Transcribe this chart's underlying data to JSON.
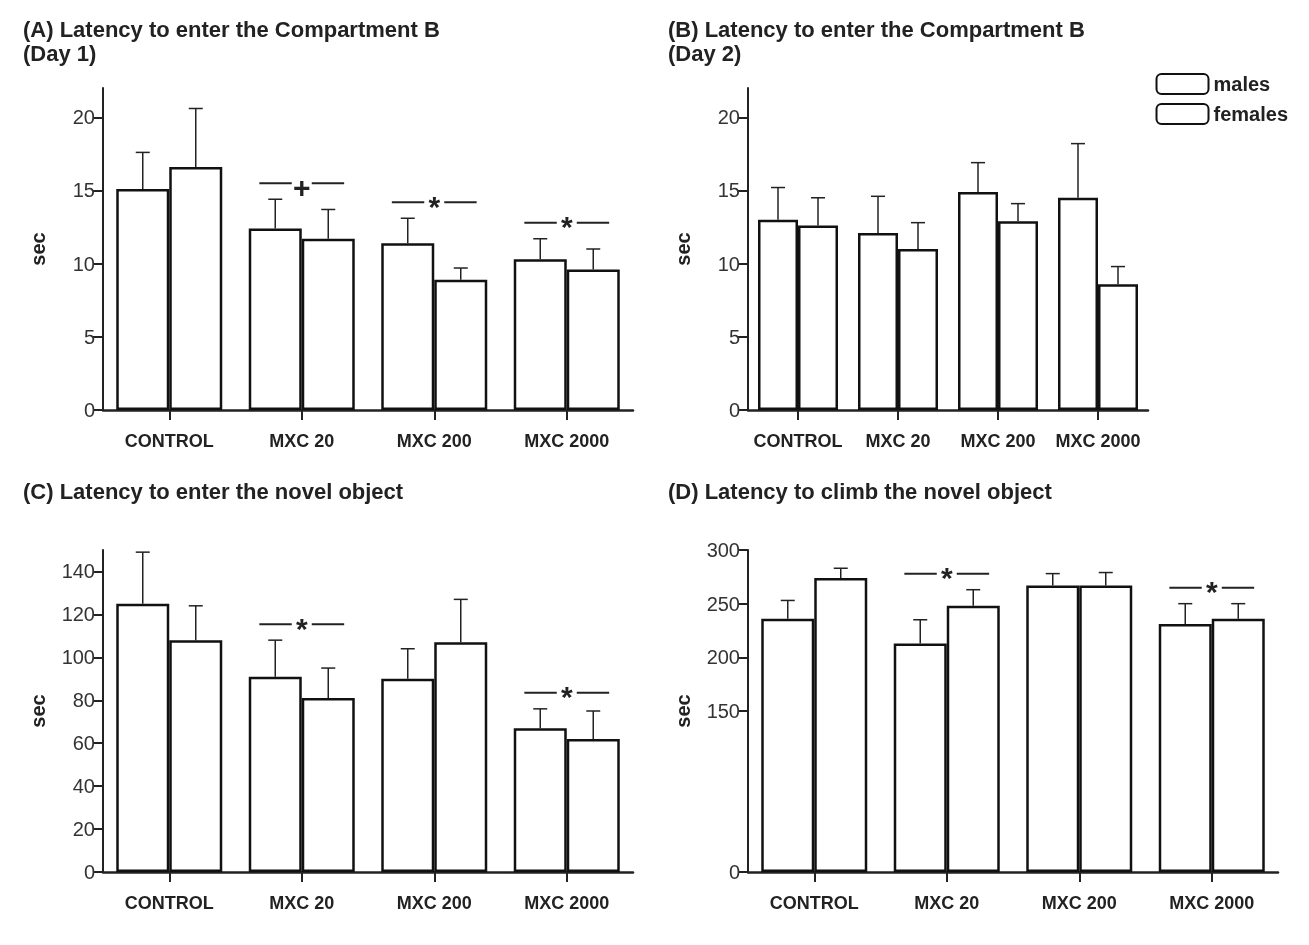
{
  "chart_data": [
    {
      "type": "bar",
      "title": "(A) Latency to enter the Compartment B\n(Day 1)",
      "ylabel": "sec",
      "categories": [
        "CONTROL",
        "MXC 20",
        "MXC 200",
        "MXC 2000"
      ],
      "ylim": [
        0,
        22
      ],
      "yticks": [
        0,
        5,
        10,
        15,
        20
      ],
      "grid": false,
      "series": [
        {
          "color": "#ffffff",
          "values": [
            15.1,
            12.4,
            11.4,
            10.3
          ],
          "errors": [
            [
              15.1,
              17.6
            ],
            [
              12.4,
              14.4
            ],
            [
              11.4,
              13.1
            ],
            [
              10.3,
              11.7
            ]
          ]
        },
        {
          "color": "#ffffff",
          "values": [
            16.6,
            11.7,
            8.9,
            9.6
          ],
          "errors": [
            [
              16.6,
              20.6
            ],
            [
              11.7,
              13.7
            ],
            [
              8.9,
              9.7
            ],
            [
              9.6,
              11.0
            ]
          ]
        }
      ],
      "annotations": [
        "+",
        "*",
        "*"
      ]
    },
    {
      "type": "bar",
      "title": "(B) Latency to enter the Compartment B\n(Day 2)",
      "ylabel": "sec",
      "categories": [
        "CONTROL",
        "MXC 20",
        "MXC 200",
        "MXC 2000"
      ],
      "ylim": [
        0,
        22
      ],
      "yticks": [
        0,
        5,
        10,
        15,
        20
      ],
      "legend": "top right",
      "grid": false,
      "series": [
        {
          "name": "males",
          "color": "#ffffff",
          "values": [
            13.0,
            12.1,
            14.9,
            14.5
          ],
          "errors": [
            [
              13.0,
              15.2
            ],
            [
              12.1,
              14.6
            ],
            [
              14.9,
              16.9
            ],
            [
              14.5,
              18.2
            ]
          ]
        },
        {
          "name": "females",
          "color": "#ffffff",
          "values": [
            12.6,
            11.0,
            12.9,
            8.6
          ],
          "errors": [
            [
              12.6,
              14.5
            ],
            [
              11.0,
              12.8
            ],
            [
              12.9,
              14.1
            ],
            [
              8.6,
              9.8
            ]
          ]
        }
      ]
    },
    {
      "type": "bar",
      "title": "(C) Latency to enter the novel object",
      "ylabel": "sec",
      "categories": [
        "CONTROL",
        "MXC 20",
        "MXC 200",
        "MXC 2000"
      ],
      "ylim": [
        0,
        150
      ],
      "yticks": [
        0,
        20,
        40,
        60,
        80,
        100,
        120,
        140
      ],
      "grid": false,
      "series": [
        {
          "color": "#ffffff",
          "values": [
            125,
            91,
            90,
            67
          ],
          "errors": [
            [
              125,
              149
            ],
            [
              91,
              108
            ],
            [
              90,
              104
            ],
            [
              67,
              76
            ]
          ]
        },
        {
          "color": "#ffffff",
          "values": [
            108,
            81,
            107,
            62
          ],
          "errors": [
            [
              108,
              124
            ],
            [
              81,
              95
            ],
            [
              107,
              127
            ],
            [
              62,
              75
            ]
          ]
        }
      ],
      "annotations": [
        "*",
        "*"
      ]
    },
    {
      "type": "bar",
      "title": "(D) Latency to climb the novel object",
      "ylabel": "sec",
      "categories": [
        "CONTROL",
        "MXC 20",
        "MXC 200",
        "MXC 2000"
      ],
      "ylim": [
        0,
        300
      ],
      "yticks": [
        0,
        150,
        200,
        250,
        300
      ],
      "grid": false,
      "series": [
        {
          "color": "#ffffff",
          "values": [
            236,
            213,
            267,
            231
          ],
          "errors": [
            [
              236,
              253
            ],
            [
              213,
              235
            ],
            [
              267,
              278
            ],
            [
              231,
              250
            ]
          ]
        },
        {
          "color": "#ffffff",
          "values": [
            274,
            248,
            267,
            236
          ],
          "errors": [
            [
              274,
              283
            ],
            [
              248,
              263
            ],
            [
              267,
              279
            ],
            [
              236,
              250
            ]
          ]
        }
      ],
      "annotations": [
        "*",
        "*"
      ]
    }
  ]
}
